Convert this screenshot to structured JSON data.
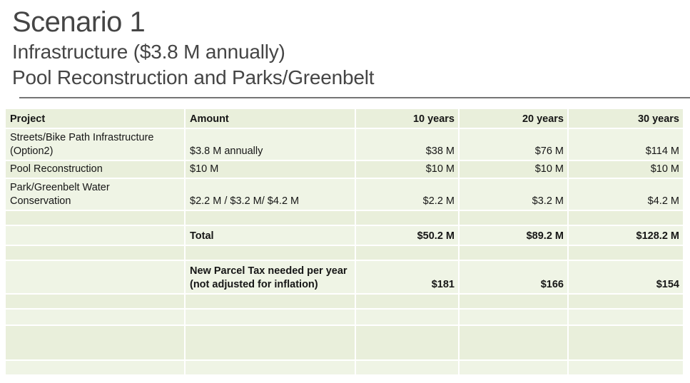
{
  "slide": {
    "title": "Scenario 1",
    "subtitle1": "Infrastructure ($3.8 M annually)",
    "subtitle2": "Pool Reconstruction and Parks/Greenbelt"
  },
  "table": {
    "columns": [
      "Project",
      "Amount",
      "10 years",
      "20 years",
      "30 years"
    ],
    "rows": [
      [
        "Streets/Bike Path Infrastructure (Option2)",
        "$3.8 M annually",
        "$38 M",
        "$76 M",
        "$114 M"
      ],
      [
        "Pool Reconstruction",
        "$10 M",
        "$10 M",
        "$10 M",
        "$10 M"
      ],
      [
        "Park/Greenbelt Water Conservation",
        "$2.2 M / $3.2 M/ $4.2 M",
        "$2.2 M",
        "$3.2 M",
        "$4.2 M"
      ],
      [
        "",
        "",
        "",
        "",
        ""
      ],
      [
        "",
        "Total",
        "$50.2 M",
        "$89.2 M",
        "$128.2 M"
      ],
      [
        "",
        "",
        "",
        "",
        ""
      ],
      [
        "",
        "New Parcel Tax needed per year (not adjusted for inflation)",
        "$181",
        "$166",
        "$154"
      ],
      [
        "",
        "",
        "",
        "",
        ""
      ],
      [
        "",
        "",
        "",
        "",
        ""
      ],
      [
        "",
        "",
        "",
        "",
        ""
      ],
      [
        "",
        "",
        "",
        "",
        ""
      ]
    ]
  },
  "colors": {
    "heading_gray": "#454545",
    "rule_gray": "#757575",
    "row_green_dark": "#e9efdb",
    "row_green_light": "#eff4e5",
    "table_text": "#161616",
    "background": "#ffffff"
  }
}
